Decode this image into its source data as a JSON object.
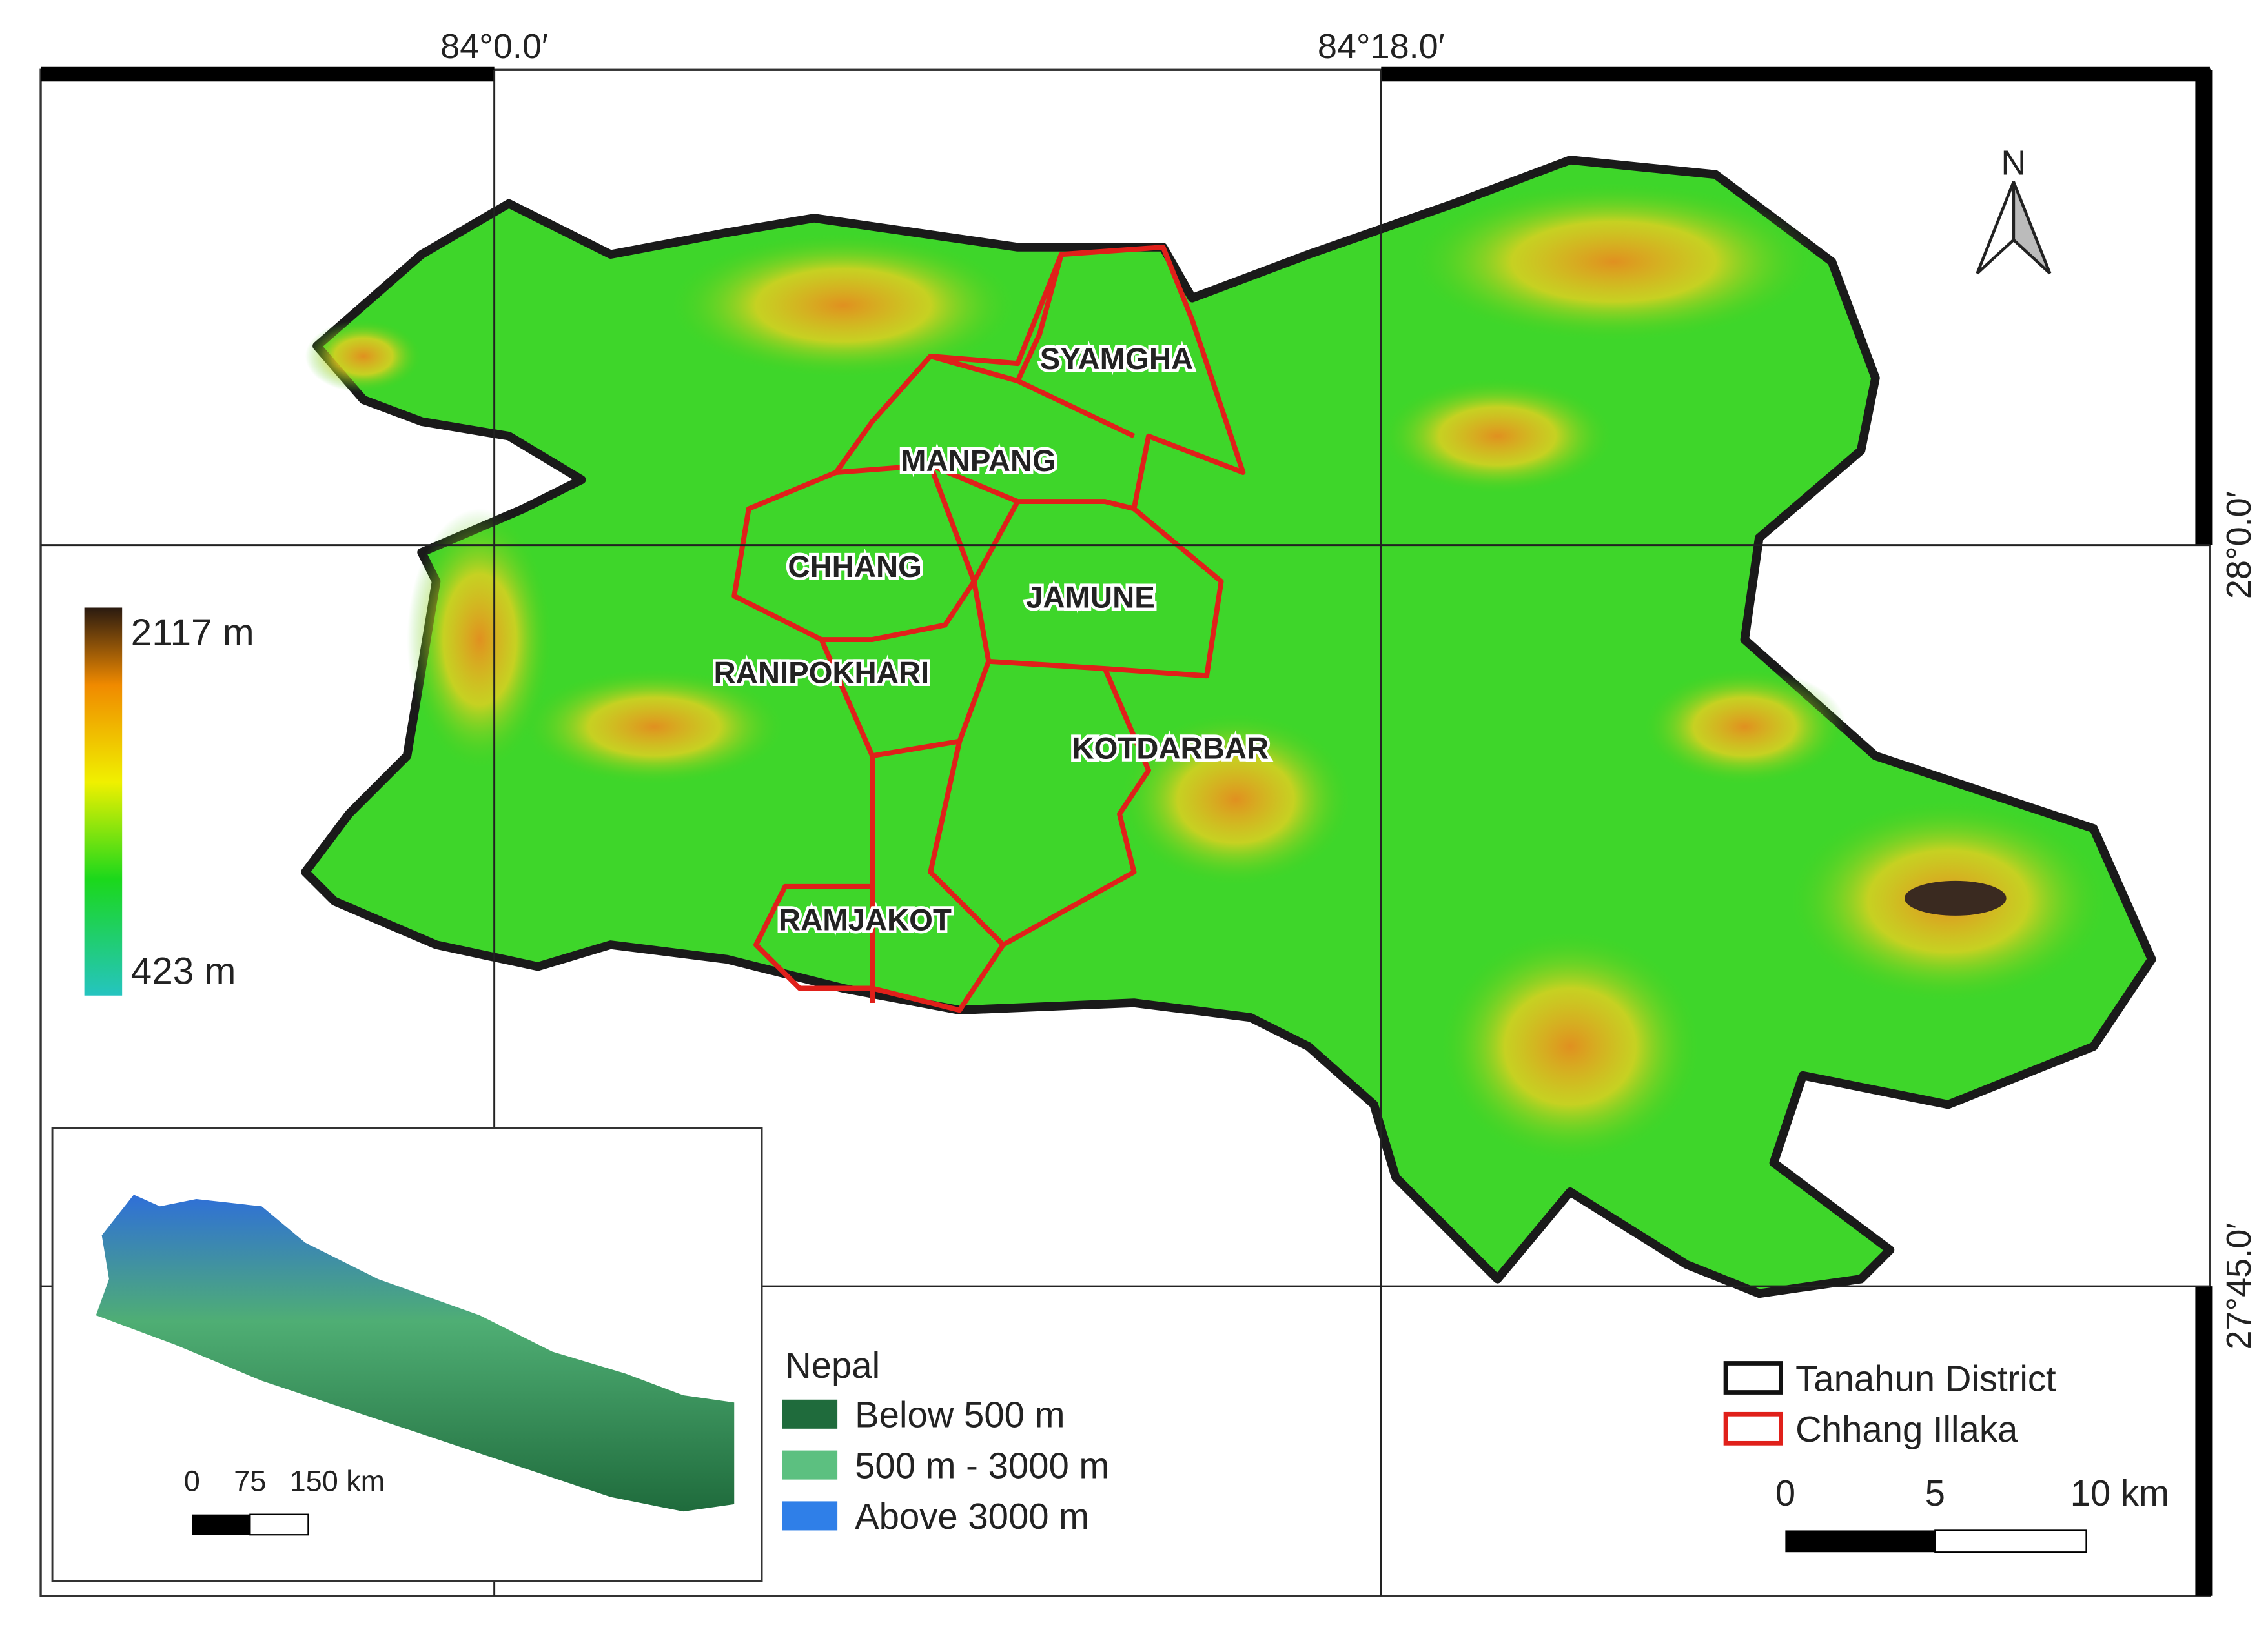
{
  "map": {
    "longitude_labels": [
      "84°0.0′",
      "84°18.0′"
    ],
    "latitude_labels": [
      "28°0.0′",
      "27°45.0′"
    ],
    "north_label": "N",
    "elevation_legend": {
      "max": "2117 m",
      "min": "423 m"
    },
    "illaka_labels": [
      "SYAMGHA",
      "MANPANG",
      "CHHANG",
      "JAMUNE",
      "RANIPOKHARI",
      "KOTDARBAR",
      "RAMJAKOT"
    ],
    "inset": {
      "scale_labels": [
        "0",
        "75",
        "150 km"
      ]
    },
    "nepal_legend": {
      "title": "Nepal",
      "items": [
        "Below 500 m",
        "500 m - 3000 m",
        "Above 3000 m"
      ]
    },
    "boundary_legend": {
      "items": [
        "Tanahun District",
        "Chhang Illaka"
      ]
    },
    "scale_labels": [
      "0",
      "5",
      "10 km"
    ]
  }
}
